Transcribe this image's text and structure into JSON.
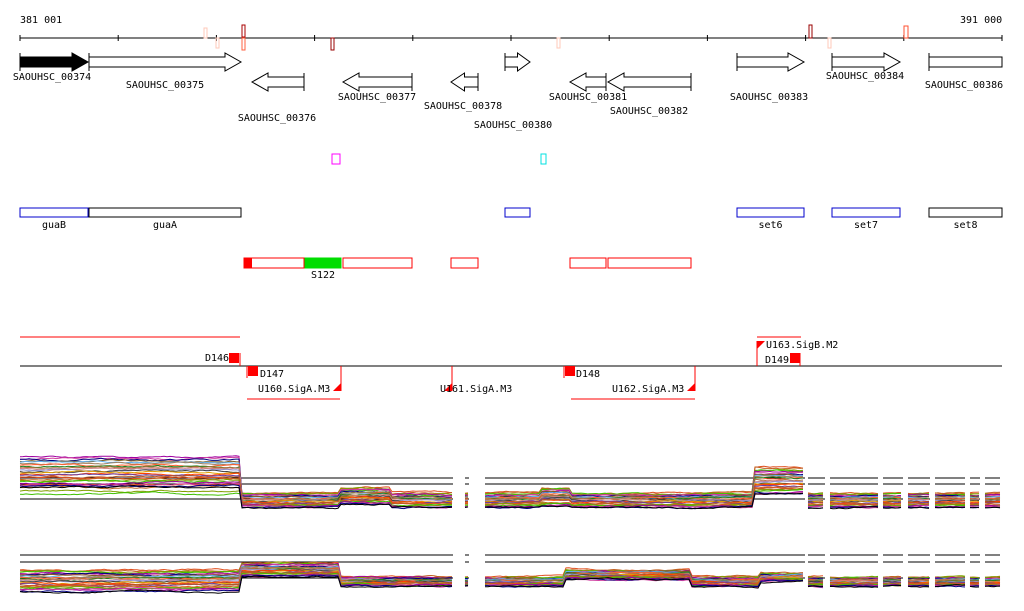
{
  "ruler": {
    "start_label": "381 001",
    "end_label": "391 000"
  },
  "genes": [
    {
      "name": "SAOUHSC_00374",
      "strand": "+",
      "highlighted": true
    },
    {
      "name": "SAOUHSC_00375",
      "strand": "+"
    },
    {
      "name": "SAOUHSC_00376",
      "strand": "-"
    },
    {
      "name": "SAOUHSC_00377",
      "strand": "-"
    },
    {
      "name": "SAOUHSC_00378",
      "strand": "-"
    },
    {
      "name": "SAOUHSC_00380",
      "strand": "+"
    },
    {
      "name": "SAOUHSC_00381",
      "strand": "-"
    },
    {
      "name": "SAOUHSC_00382",
      "strand": "-"
    },
    {
      "name": "SAOUHSC_00383",
      "strand": "+"
    },
    {
      "name": "SAOUHSC_00384",
      "strand": "+"
    },
    {
      "name": "SAOUHSC_00386",
      "strand": "+"
    }
  ],
  "operons": [
    {
      "name": "guaB",
      "color": "#0000cc"
    },
    {
      "name": "guaA",
      "color": "#000000"
    },
    {
      "name": "",
      "color": "#0000cc"
    },
    {
      "name": "set6",
      "color": "#0000cc"
    },
    {
      "name": "set7",
      "color": "#0000cc"
    },
    {
      "name": "set8",
      "color": "#000000"
    }
  ],
  "segments": [
    {
      "name": "",
      "color": "#ff0000"
    },
    {
      "name": "S122",
      "color": "#00dd00"
    },
    {
      "name": "",
      "color": "#ff0000"
    },
    {
      "name": "",
      "color": "#ff0000"
    },
    {
      "name": "",
      "color": "#ff0000"
    },
    {
      "name": "",
      "color": "#ff0000"
    }
  ],
  "regulation": {
    "breakpoints": [
      "D146",
      "D147",
      "D148",
      "D149"
    ],
    "promoters": [
      "U160.SigA.M3",
      "U161.SigA.M3",
      "U162.SigA.M3",
      "U163.SigB.M2"
    ]
  },
  "colors": {
    "accent": "#ff0000",
    "green": "#00dd00",
    "magenta": "#ff00ff",
    "cyan": "#00e0e0"
  }
}
